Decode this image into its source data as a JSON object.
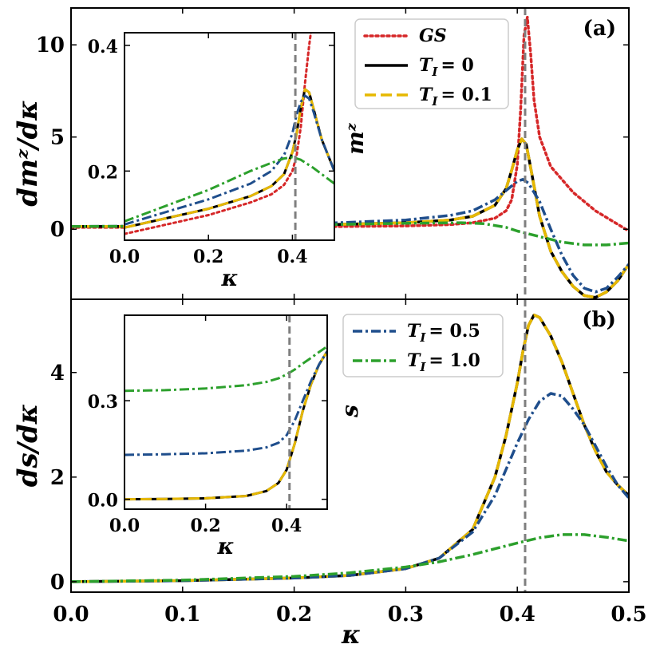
{
  "chart_data": [
    {
      "panel": "main-a",
      "type": "line",
      "panel_label": "(a)",
      "xlabel": "κ",
      "ylabel": "dmᶻ/dκ",
      "xlim": [
        0,
        0.5
      ],
      "ylim": [
        -3.8,
        12
      ],
      "xticks": [
        0,
        0.1,
        0.2,
        0.3,
        0.4,
        0.5
      ],
      "xtick_labels": [
        "0.0",
        "0.1",
        "0.2",
        "0.3",
        "0.4",
        "0.5"
      ],
      "yticks": [
        0,
        5,
        10
      ],
      "ytick_labels": [
        "0",
        "5",
        "10"
      ],
      "critical_kappa": 0.407,
      "legend": [
        "GS",
        "T_I = 0",
        "T_I = 0.1"
      ],
      "legend_labels": [
        "GS",
        "T",
        "I",
        "= 0",
        "T",
        "I",
        "= 0.1"
      ],
      "series": [
        {
          "name": "GS",
          "color": "#d62728",
          "style": "dotted",
          "x": [
            0,
            0.1,
            0.2,
            0.3,
            0.34,
            0.36,
            0.38,
            0.39,
            0.395,
            0.4,
            0.403,
            0.406,
            0.409,
            0.412,
            0.415,
            0.42,
            0.43,
            0.45,
            0.47,
            0.5
          ],
          "y": [
            0.1,
            0.1,
            0.12,
            0.18,
            0.25,
            0.35,
            0.6,
            1.0,
            1.6,
            3.5,
            6.5,
            10.5,
            11.5,
            9.5,
            7.0,
            5.0,
            3.4,
            2.0,
            1.0,
            -0.1
          ]
        },
        {
          "name": "T_I = 0",
          "color": "#000000",
          "style": "solid",
          "x": [
            0,
            0.1,
            0.2,
            0.3,
            0.34,
            0.36,
            0.38,
            0.39,
            0.395,
            0.4,
            0.404,
            0.408,
            0.413,
            0.42,
            0.43,
            0.44,
            0.45,
            0.46,
            0.47,
            0.48,
            0.49,
            0.5
          ],
          "y": [
            0.15,
            0.15,
            0.2,
            0.35,
            0.5,
            0.7,
            1.3,
            2.2,
            3.2,
            4.3,
            4.9,
            4.6,
            3.0,
            0.7,
            -1.2,
            -2.3,
            -3.1,
            -3.6,
            -3.7,
            -3.4,
            -2.8,
            -1.9
          ]
        },
        {
          "name": "T_I = 0.1",
          "color": "#e6b800",
          "style": "dashed",
          "x": [
            0,
            0.1,
            0.2,
            0.3,
            0.34,
            0.36,
            0.38,
            0.39,
            0.395,
            0.4,
            0.404,
            0.408,
            0.413,
            0.42,
            0.43,
            0.44,
            0.45,
            0.46,
            0.47,
            0.48,
            0.49,
            0.5
          ],
          "y": [
            0.15,
            0.15,
            0.2,
            0.35,
            0.5,
            0.7,
            1.3,
            2.2,
            3.2,
            4.3,
            4.9,
            4.6,
            3.0,
            0.7,
            -1.2,
            -2.3,
            -3.1,
            -3.6,
            -3.7,
            -3.4,
            -2.8,
            -1.9
          ]
        },
        {
          "name": "T_I = 0.5",
          "color": "#1f4e8c",
          "style": "dashdot",
          "x": [
            0,
            0.1,
            0.2,
            0.3,
            0.34,
            0.36,
            0.38,
            0.39,
            0.4,
            0.405,
            0.41,
            0.42,
            0.43,
            0.44,
            0.45,
            0.46,
            0.47,
            0.48,
            0.49,
            0.5
          ],
          "y": [
            0.15,
            0.18,
            0.25,
            0.5,
            0.75,
            1.0,
            1.6,
            2.1,
            2.6,
            2.7,
            2.5,
            1.5,
            0.0,
            -1.4,
            -2.5,
            -3.2,
            -3.4,
            -3.2,
            -2.6,
            -1.9
          ]
        },
        {
          "name": "T_I = 1.0",
          "color": "#2ca02c",
          "style": "dashdot",
          "x": [
            0,
            0.1,
            0.2,
            0.3,
            0.35,
            0.37,
            0.39,
            0.4,
            0.42,
            0.44,
            0.46,
            0.48,
            0.5
          ],
          "y": [
            0.15,
            0.17,
            0.22,
            0.32,
            0.35,
            0.3,
            0.1,
            -0.1,
            -0.4,
            -0.7,
            -0.85,
            -0.85,
            -0.75
          ]
        }
      ]
    },
    {
      "panel": "inset-a",
      "type": "line",
      "xlabel": "κ",
      "ylabel": "mᶻ",
      "xlim": [
        0,
        0.5
      ],
      "ylim": [
        0.09,
        0.42
      ],
      "xticks": [
        0,
        0.2,
        0.4
      ],
      "xtick_labels": [
        "0.0",
        "0.2",
        "0.4"
      ],
      "yticks": [
        0.2,
        0.4
      ],
      "ytick_labels": [
        "0.2",
        "0.4"
      ],
      "critical_kappa": 0.407,
      "series": [
        {
          "name": "GS",
          "color": "#d62728",
          "style": "dotted",
          "x": [
            0,
            0.1,
            0.2,
            0.3,
            0.35,
            0.38,
            0.4,
            0.41,
            0.42,
            0.43,
            0.44,
            0.45
          ],
          "y": [
            0.1,
            0.115,
            0.13,
            0.15,
            0.163,
            0.178,
            0.2,
            0.225,
            0.27,
            0.34,
            0.4,
            0.45
          ]
        },
        {
          "name": "T_I = 0",
          "color": "#000000",
          "style": "solid",
          "x": [
            0,
            0.1,
            0.2,
            0.3,
            0.35,
            0.38,
            0.4,
            0.41,
            0.42,
            0.43,
            0.44,
            0.45,
            0.47,
            0.5
          ],
          "y": [
            0.11,
            0.125,
            0.14,
            0.16,
            0.176,
            0.195,
            0.23,
            0.26,
            0.3,
            0.33,
            0.325,
            0.3,
            0.25,
            0.2
          ]
        },
        {
          "name": "T_I = 0.1",
          "color": "#e6b800",
          "style": "dashed",
          "x": [
            0,
            0.1,
            0.2,
            0.3,
            0.35,
            0.38,
            0.4,
            0.41,
            0.42,
            0.43,
            0.44,
            0.45,
            0.47,
            0.5
          ],
          "y": [
            0.11,
            0.125,
            0.14,
            0.16,
            0.176,
            0.195,
            0.23,
            0.26,
            0.3,
            0.33,
            0.325,
            0.3,
            0.25,
            0.2
          ]
        },
        {
          "name": "T_I = 0.5",
          "color": "#1f4e8c",
          "style": "dashdot",
          "x": [
            0,
            0.1,
            0.2,
            0.3,
            0.35,
            0.38,
            0.4,
            0.41,
            0.42,
            0.43,
            0.44,
            0.45,
            0.47,
            0.5
          ],
          "y": [
            0.115,
            0.135,
            0.155,
            0.18,
            0.2,
            0.225,
            0.26,
            0.29,
            0.31,
            0.32,
            0.315,
            0.295,
            0.25,
            0.2
          ]
        },
        {
          "name": "T_I = 1.0",
          "color": "#2ca02c",
          "style": "dashdot",
          "x": [
            0,
            0.1,
            0.2,
            0.3,
            0.35,
            0.38,
            0.4,
            0.42,
            0.45,
            0.47,
            0.5
          ],
          "y": [
            0.12,
            0.145,
            0.17,
            0.2,
            0.213,
            0.22,
            0.222,
            0.218,
            0.205,
            0.195,
            0.18
          ]
        }
      ]
    },
    {
      "panel": "main-b",
      "type": "line",
      "panel_label": "(b)",
      "xlabel": "κ",
      "ylabel": "ds/dκ",
      "xlim": [
        0,
        0.5
      ],
      "ylim": [
        -0.2,
        5.4
      ],
      "xticks": [
        0,
        0.1,
        0.2,
        0.3,
        0.4,
        0.5
      ],
      "xtick_labels": [
        "0.0",
        "0.1",
        "0.2",
        "0.3",
        "0.4",
        "0.5"
      ],
      "yticks": [
        0,
        2,
        4
      ],
      "ytick_labels": [
        "0",
        "2",
        "4"
      ],
      "critical_kappa": 0.407,
      "legend": [
        "T_I = 0.5",
        "T_I = 1.0"
      ],
      "legend_labels": [
        "T",
        "I",
        "= 0.5",
        "T",
        "I",
        "= 1.0"
      ],
      "series": [
        {
          "name": "T_I = 0",
          "color": "#000000",
          "style": "solid",
          "x": [
            0,
            0.1,
            0.2,
            0.25,
            0.3,
            0.33,
            0.36,
            0.38,
            0.39,
            0.4,
            0.405,
            0.41,
            0.415,
            0.42,
            0.43,
            0.44,
            0.45,
            0.46,
            0.47,
            0.48,
            0.49,
            0.5
          ],
          "y": [
            0,
            0.02,
            0.07,
            0.12,
            0.25,
            0.45,
            1.0,
            2.0,
            2.8,
            3.8,
            4.4,
            4.9,
            5.1,
            5.05,
            4.7,
            4.2,
            3.6,
            3.0,
            2.5,
            2.1,
            1.85,
            1.65
          ]
        },
        {
          "name": "T_I = 0.1",
          "color": "#e6b800",
          "style": "dashed",
          "x": [
            0,
            0.1,
            0.2,
            0.25,
            0.3,
            0.33,
            0.36,
            0.38,
            0.39,
            0.4,
            0.405,
            0.41,
            0.415,
            0.42,
            0.43,
            0.44,
            0.45,
            0.46,
            0.47,
            0.48,
            0.49,
            0.5
          ],
          "y": [
            0,
            0.02,
            0.07,
            0.12,
            0.25,
            0.45,
            1.0,
            2.0,
            2.8,
            3.8,
            4.4,
            4.9,
            5.1,
            5.05,
            4.7,
            4.2,
            3.6,
            3.0,
            2.5,
            2.1,
            1.85,
            1.65
          ]
        },
        {
          "name": "T_I = 0.5",
          "color": "#1f4e8c",
          "style": "dashdot",
          "x": [
            0,
            0.1,
            0.2,
            0.25,
            0.3,
            0.33,
            0.36,
            0.38,
            0.39,
            0.4,
            0.41,
            0.42,
            0.43,
            0.44,
            0.45,
            0.46,
            0.47,
            0.48,
            0.49,
            0.5
          ],
          "y": [
            0,
            0.02,
            0.07,
            0.12,
            0.25,
            0.45,
            0.95,
            1.65,
            2.15,
            2.65,
            3.1,
            3.45,
            3.6,
            3.55,
            3.3,
            3.0,
            2.6,
            2.2,
            1.85,
            1.6
          ]
        },
        {
          "name": "T_I = 1.0",
          "color": "#2ca02c",
          "style": "dashdot",
          "x": [
            0,
            0.1,
            0.2,
            0.25,
            0.3,
            0.33,
            0.36,
            0.38,
            0.4,
            0.42,
            0.44,
            0.46,
            0.48,
            0.5
          ],
          "y": [
            0,
            0.03,
            0.1,
            0.17,
            0.28,
            0.38,
            0.52,
            0.63,
            0.74,
            0.84,
            0.9,
            0.9,
            0.85,
            0.78
          ]
        }
      ]
    },
    {
      "panel": "inset-b",
      "type": "line",
      "xlabel": "κ",
      "ylabel": "s",
      "xlim": [
        0,
        0.5
      ],
      "ylim": [
        -0.03,
        0.56
      ],
      "xticks": [
        0,
        0.2,
        0.4
      ],
      "xtick_labels": [
        "0.0",
        "0.2",
        "0.4"
      ],
      "yticks": [
        0.0,
        0.3
      ],
      "ytick_labels": [
        "0.0",
        "0.3"
      ],
      "critical_kappa": 0.407,
      "series": [
        {
          "name": "T_I = 0",
          "color": "#000000",
          "style": "solid",
          "x": [
            0,
            0.1,
            0.2,
            0.3,
            0.35,
            0.38,
            0.4,
            0.42,
            0.44,
            0.46,
            0.48,
            0.5
          ],
          "y": [
            0.0,
            0.001,
            0.003,
            0.01,
            0.025,
            0.05,
            0.09,
            0.17,
            0.27,
            0.35,
            0.41,
            0.45
          ]
        },
        {
          "name": "T_I = 0.1",
          "color": "#e6b800",
          "style": "dashed",
          "x": [
            0,
            0.1,
            0.2,
            0.3,
            0.35,
            0.38,
            0.4,
            0.42,
            0.44,
            0.46,
            0.48,
            0.5
          ],
          "y": [
            0.0,
            0.001,
            0.003,
            0.01,
            0.025,
            0.05,
            0.09,
            0.17,
            0.27,
            0.35,
            0.41,
            0.45
          ]
        },
        {
          "name": "T_I = 0.5",
          "color": "#1f4e8c",
          "style": "dashdot",
          "x": [
            0,
            0.1,
            0.2,
            0.3,
            0.35,
            0.38,
            0.4,
            0.42,
            0.44,
            0.46,
            0.48,
            0.5
          ],
          "y": [
            0.135,
            0.137,
            0.14,
            0.148,
            0.158,
            0.172,
            0.195,
            0.24,
            0.3,
            0.36,
            0.41,
            0.45
          ]
        },
        {
          "name": "T_I = 1.0",
          "color": "#2ca02c",
          "style": "dashdot",
          "x": [
            0,
            0.1,
            0.2,
            0.3,
            0.35,
            0.38,
            0.4,
            0.42,
            0.44,
            0.46,
            0.48,
            0.5
          ],
          "y": [
            0.33,
            0.332,
            0.337,
            0.347,
            0.357,
            0.368,
            0.38,
            0.395,
            0.413,
            0.43,
            0.448,
            0.465
          ]
        }
      ]
    }
  ]
}
